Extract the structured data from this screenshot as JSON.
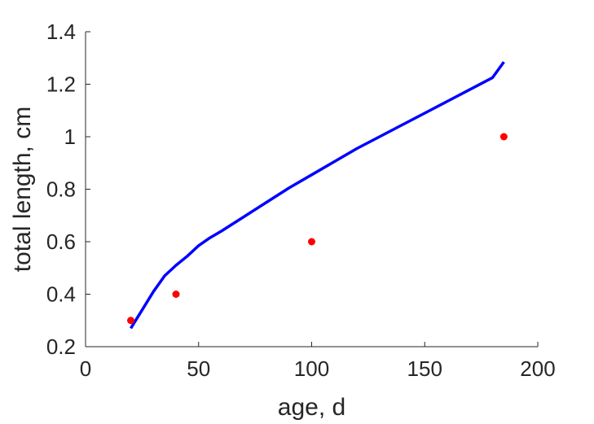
{
  "chart_data": {
    "type": "line",
    "title": "",
    "xlabel": "age, d",
    "ylabel": "total length, cm",
    "xlim": [
      0,
      200
    ],
    "ylim": [
      0.2,
      1.4
    ],
    "x_ticks": [
      0,
      50,
      100,
      150,
      200
    ],
    "y_ticks": [
      0.2,
      0.4,
      0.6,
      0.8,
      1.0,
      1.2,
      1.4
    ],
    "x_tick_labels": [
      "0",
      "50",
      "100",
      "150",
      "200"
    ],
    "y_tick_labels": [
      "0.2",
      "0.4",
      "0.6",
      "0.8",
      "1",
      "1.2",
      "1.4"
    ],
    "grid": false,
    "series": [
      {
        "kind": "line",
        "color": "#0000ff",
        "x": [
          20,
          25,
          30,
          35,
          40,
          45,
          50,
          55,
          60,
          70,
          80,
          90,
          100,
          110,
          120,
          130,
          140,
          150,
          160,
          170,
          180,
          185
        ],
        "y": [
          0.27,
          0.34,
          0.41,
          0.47,
          0.51,
          0.545,
          0.585,
          0.615,
          0.64,
          0.695,
          0.75,
          0.805,
          0.855,
          0.905,
          0.955,
          1.0,
          1.045,
          1.09,
          1.135,
          1.18,
          1.225,
          1.285
        ]
      },
      {
        "kind": "scatter",
        "color": "#ff0000",
        "x": [
          20,
          40,
          100,
          185
        ],
        "y": [
          0.3,
          0.4,
          0.6,
          1.0
        ]
      }
    ]
  }
}
